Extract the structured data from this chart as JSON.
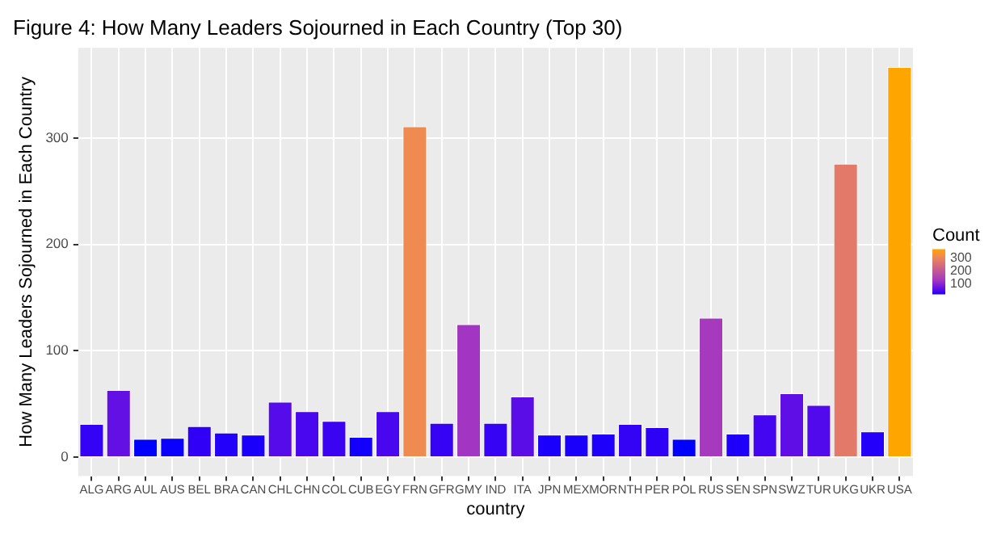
{
  "chart_data": {
    "type": "bar",
    "title": "Figure 4: How Many Leaders Sojourned in Each Country (Top 30)",
    "xlabel": "country",
    "ylabel": "How Many Leaders Sojourned in Each Country",
    "legend_title": "Count",
    "categories": [
      "ALG",
      "ARG",
      "AUL",
      "AUS",
      "BEL",
      "BRA",
      "CAN",
      "CHL",
      "CHN",
      "COL",
      "CUB",
      "EGY",
      "FRN",
      "GFR",
      "GMY",
      "IND",
      "ITA",
      "JPN",
      "MEX",
      "MOR",
      "NTH",
      "PER",
      "POL",
      "RUS",
      "SEN",
      "SPN",
      "SWZ",
      "TUR",
      "UKG",
      "UKR",
      "USA"
    ],
    "values": [
      31,
      63,
      17,
      18,
      29,
      23,
      21,
      52,
      43,
      34,
      19,
      43,
      311,
      32,
      125,
      32,
      57,
      21,
      21,
      22,
      31,
      28,
      17,
      131,
      22,
      40,
      60,
      49,
      276,
      24,
      367
    ],
    "colors": [
      "#3402f5",
      "#6310e5",
      "#0000ff",
      "#0a00fd",
      "#3000f6",
      "#2200f9",
      "#1a00fb",
      "#550bea",
      "#4807ef",
      "#3a04f3",
      "#1200fc",
      "#4807ef",
      "#ef8b51",
      "#3603f4",
      "#a236c2",
      "#3603f4",
      "#5b0de8",
      "#1a00fb",
      "#1a00fb",
      "#1e00fa",
      "#3402f5",
      "#2e00f6",
      "#0000ff",
      "#a53abd",
      "#1e00fa",
      "#4406f0",
      "#5f0fe6",
      "#510aec",
      "#e37a69",
      "#2500f9",
      "#ffa500"
    ],
    "ylim": [
      -18,
      385
    ],
    "yticks": [
      0,
      100,
      200,
      300
    ],
    "grid": true,
    "clim": [
      17,
      367
    ],
    "cticks": [
      100,
      200,
      300
    ]
  }
}
